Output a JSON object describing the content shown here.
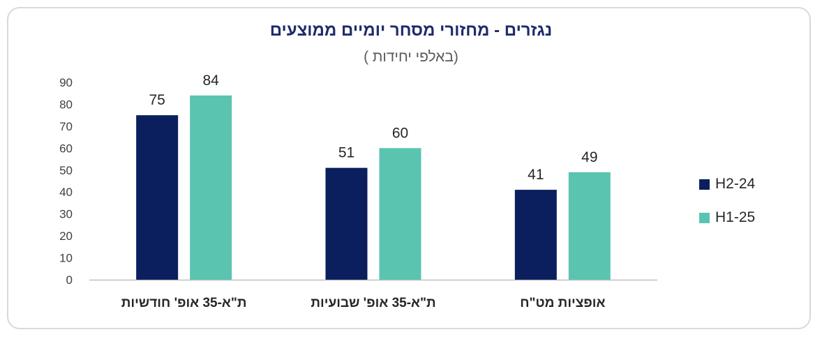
{
  "chart_data": {
    "type": "bar",
    "title": "נגזרים - מחזורי מסחר יומיים ממוצעים",
    "subtitle": "(באלפי יחידות )",
    "categories": [
      "ת\"א-35 אופ' חודשיות",
      "ת\"א-35 אופ' שבועיות",
      "אופציות מט\"ח"
    ],
    "series": [
      {
        "name": "H2-24",
        "values": [
          75,
          51,
          41
        ],
        "color": "#0b1f5e"
      },
      {
        "name": "H1-25",
        "values": [
          84,
          60,
          49
        ],
        "color": "#5bc4b1"
      }
    ],
    "ylim": [
      0,
      90
    ],
    "yticks": [
      "0",
      "10",
      "20",
      "30",
      "40",
      "50",
      "60",
      "70",
      "80",
      "90"
    ],
    "grid": false,
    "legend_position": "right"
  }
}
